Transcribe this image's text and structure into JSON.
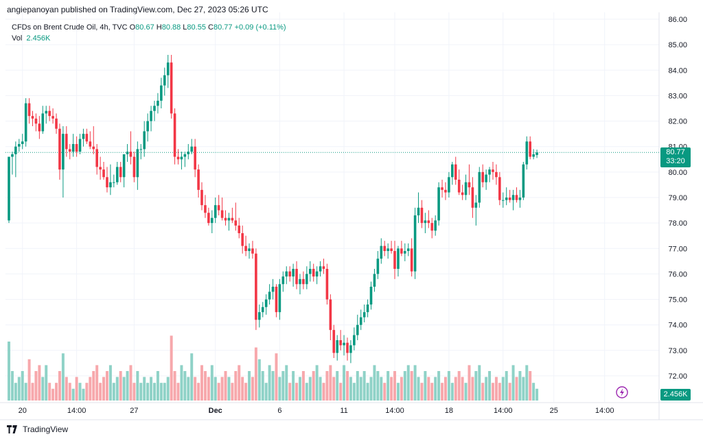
{
  "header": {
    "publisher_line": "angiepanoyan published on TradingView.com, Dec 27, 2023 05:26 UTC"
  },
  "legend": {
    "symbol": "CFDs on Brent Crude Oil, 4h, TVC",
    "o_label": "O",
    "o_value": "80.67",
    "h_label": "H",
    "h_value": "80.88",
    "l_label": "L",
    "l_value": "80.55",
    "c_label": "C",
    "c_value": "80.77",
    "change": "+0.09 (+0.11%)",
    "vol_label": "Vol",
    "vol_value": "2.456K"
  },
  "price_tag": {
    "price": "80.77",
    "countdown": "33:20"
  },
  "volume_tag": "2.456K",
  "footer": {
    "brand": "TradingView"
  },
  "colors": {
    "up": "#089981",
    "down": "#f23645",
    "vol_up": "#8fd2c7",
    "vol_down": "#f7a8ac",
    "grid": "#f0f3fa",
    "text": "#131722"
  },
  "chart_data": {
    "type": "candlestick",
    "y_axis": {
      "min": 72,
      "max": 86,
      "ticks": [
        "86.00",
        "85.00",
        "84.00",
        "83.00",
        "82.00",
        "81.00",
        "80.00",
        "79.00",
        "78.00",
        "77.00",
        "76.00",
        "75.00",
        "74.00",
        "73.00",
        "72.00"
      ]
    },
    "x_axis": {
      "labels": [
        {
          "text": "20",
          "bar": 4
        },
        {
          "text": "14:00",
          "bar": 20
        },
        {
          "text": "27",
          "bar": 37
        },
        {
          "text": "Dec",
          "bar": 61
        },
        {
          "text": "6",
          "bar": 80
        },
        {
          "text": "11",
          "bar": 99
        },
        {
          "text": "14:00",
          "bar": 114
        },
        {
          "text": "18",
          "bar": 130
        },
        {
          "text": "14:00",
          "bar": 146
        },
        {
          "text": "25",
          "bar": 161
        },
        {
          "text": "14:00",
          "bar": 176
        }
      ]
    },
    "last_price": 80.77,
    "candles": [
      [
        78.1,
        80.6,
        78.0,
        80.6,
        1.0
      ],
      [
        80.6,
        80.8,
        79.9,
        80.7,
        0.5
      ],
      [
        80.7,
        81.2,
        79.8,
        81.0,
        0.3
      ],
      [
        81.0,
        81.3,
        80.8,
        81.1,
        0.4
      ],
      [
        81.1,
        81.5,
        80.9,
        81.2,
        0.5
      ],
      [
        81.2,
        82.9,
        81.0,
        82.7,
        0.3
      ],
      [
        82.7,
        82.9,
        81.9,
        82.2,
        0.7
      ],
      [
        82.2,
        82.4,
        81.8,
        82.1,
        0.3
      ],
      [
        82.1,
        82.3,
        81.6,
        81.9,
        0.5
      ],
      [
        81.9,
        82.2,
        81.3,
        81.6,
        0.6
      ],
      [
        81.6,
        82.6,
        81.5,
        82.3,
        0.4
      ],
      [
        82.3,
        82.6,
        81.9,
        82.4,
        0.6
      ],
      [
        82.4,
        82.6,
        82.0,
        82.2,
        0.3
      ],
      [
        82.2,
        82.5,
        81.9,
        82.1,
        0.2
      ],
      [
        82.1,
        82.3,
        81.5,
        81.7,
        0.3
      ],
      [
        81.7,
        81.9,
        79.7,
        80.1,
        0.5
      ],
      [
        80.1,
        81.8,
        79.0,
        81.5,
        0.8
      ],
      [
        81.5,
        81.8,
        80.6,
        80.9,
        0.4
      ],
      [
        80.9,
        81.1,
        80.5,
        80.8,
        0.3
      ],
      [
        80.8,
        81.5,
        80.6,
        81.1,
        0.2
      ],
      [
        81.1,
        81.4,
        80.6,
        80.8,
        0.4
      ],
      [
        80.8,
        81.5,
        80.7,
        81.3,
        0.3
      ],
      [
        81.3,
        81.7,
        81.0,
        81.5,
        0.2
      ],
      [
        81.5,
        81.7,
        81.1,
        81.2,
        0.3
      ],
      [
        81.2,
        81.6,
        80.9,
        81.0,
        0.4
      ],
      [
        81.0,
        81.8,
        80.7,
        80.9,
        0.5
      ],
      [
        80.9,
        81.1,
        79.9,
        80.2,
        0.6
      ],
      [
        80.2,
        80.6,
        79.7,
        80.1,
        0.3
      ],
      [
        80.1,
        80.4,
        79.7,
        79.8,
        0.4
      ],
      [
        79.8,
        80.2,
        79.2,
        79.4,
        0.5
      ],
      [
        79.4,
        80.3,
        79.1,
        79.6,
        0.6
      ],
      [
        79.6,
        79.9,
        79.4,
        79.6,
        0.3
      ],
      [
        79.6,
        80.4,
        79.5,
        80.2,
        0.4
      ],
      [
        80.2,
        80.4,
        79.6,
        79.8,
        0.5
      ],
      [
        79.8,
        80.6,
        79.4,
        80.7,
        0.4
      ],
      [
        80.7,
        81.1,
        80.4,
        80.8,
        0.5
      ],
      [
        80.8,
        81.6,
        80.3,
        80.6,
        0.6
      ],
      [
        80.6,
        80.8,
        79.6,
        79.8,
        0.3
      ],
      [
        79.8,
        81.2,
        79.3,
        80.9,
        0.5
      ],
      [
        80.9,
        81.1,
        80.5,
        80.9,
        0.3
      ],
      [
        80.9,
        82.0,
        80.6,
        81.6,
        0.4
      ],
      [
        81.6,
        82.3,
        81.2,
        82.0,
        0.3
      ],
      [
        82.0,
        82.6,
        81.6,
        82.4,
        0.4
      ],
      [
        82.4,
        82.8,
        82.0,
        82.6,
        0.3
      ],
      [
        82.6,
        83.1,
        82.3,
        82.8,
        0.5
      ],
      [
        82.8,
        83.7,
        82.5,
        83.4,
        0.3
      ],
      [
        83.4,
        84.1,
        83.0,
        83.8,
        0.3
      ],
      [
        83.8,
        84.6,
        83.3,
        84.3,
        0.4
      ],
      [
        84.3,
        84.6,
        82.1,
        82.3,
        1.1
      ],
      [
        82.3,
        82.5,
        80.3,
        80.6,
        0.5
      ],
      [
        80.6,
        80.9,
        80.3,
        80.5,
        0.3
      ],
      [
        80.5,
        80.8,
        80.1,
        80.6,
        0.6
      ],
      [
        80.6,
        80.8,
        80.2,
        80.7,
        0.5
      ],
      [
        80.7,
        81.1,
        80.5,
        80.8,
        0.4
      ],
      [
        80.8,
        81.3,
        80.7,
        81.0,
        0.8
      ],
      [
        81.0,
        81.3,
        79.8,
        80.1,
        0.4
      ],
      [
        80.1,
        80.3,
        79.0,
        79.3,
        0.3
      ],
      [
        79.3,
        79.6,
        78.5,
        78.7,
        0.6
      ],
      [
        78.7,
        79.1,
        78.2,
        78.4,
        0.5
      ],
      [
        78.4,
        78.6,
        77.9,
        78.0,
        0.4
      ],
      [
        78.0,
        78.5,
        77.6,
        78.2,
        0.6
      ],
      [
        78.2,
        79.0,
        78.0,
        78.7,
        0.4
      ],
      [
        78.7,
        79.1,
        78.3,
        78.5,
        0.3
      ],
      [
        78.5,
        79.0,
        78.1,
        78.2,
        0.4
      ],
      [
        78.2,
        78.5,
        77.9,
        78.1,
        0.5
      ],
      [
        78.1,
        78.4,
        77.7,
        78.2,
        0.4
      ],
      [
        78.2,
        78.6,
        78.0,
        78.1,
        0.3
      ],
      [
        78.1,
        78.8,
        77.7,
        77.9,
        0.5
      ],
      [
        77.9,
        78.2,
        77.4,
        77.6,
        0.6
      ],
      [
        77.6,
        77.9,
        76.8,
        77.1,
        0.4
      ],
      [
        77.1,
        77.5,
        76.7,
        76.9,
        0.3
      ],
      [
        76.9,
        77.2,
        76.6,
        77.0,
        0.5
      ],
      [
        77.0,
        77.3,
        76.6,
        76.8,
        0.4
      ],
      [
        76.8,
        77.0,
        73.8,
        74.2,
        0.9
      ],
      [
        74.2,
        74.8,
        73.9,
        74.5,
        0.7
      ],
      [
        74.5,
        74.9,
        74.3,
        74.7,
        0.5
      ],
      [
        74.7,
        75.2,
        74.4,
        75.0,
        0.3
      ],
      [
        75.0,
        75.6,
        74.8,
        75.3,
        0.6
      ],
      [
        75.3,
        75.8,
        75.0,
        75.5,
        0.5
      ],
      [
        75.5,
        75.6,
        74.3,
        74.5,
        0.8
      ],
      [
        74.5,
        75.8,
        74.2,
        75.6,
        0.4
      ],
      [
        75.6,
        76.1,
        75.3,
        75.9,
        0.5
      ],
      [
        75.9,
        76.3,
        75.6,
        76.1,
        0.6
      ],
      [
        76.1,
        76.3,
        75.7,
        75.9,
        0.3
      ],
      [
        75.9,
        76.4,
        75.5,
        76.2,
        0.5
      ],
      [
        76.2,
        76.5,
        75.4,
        75.6,
        0.3
      ],
      [
        75.6,
        76.0,
        75.2,
        75.8,
        0.4
      ],
      [
        75.8,
        76.1,
        75.4,
        75.6,
        0.5
      ],
      [
        75.6,
        76.3,
        75.4,
        76.0,
        0.3
      ],
      [
        76.0,
        76.5,
        75.7,
        76.2,
        0.4
      ],
      [
        76.2,
        76.4,
        75.7,
        75.9,
        0.5
      ],
      [
        75.9,
        76.3,
        75.6,
        76.1,
        0.6
      ],
      [
        76.1,
        76.5,
        75.9,
        76.3,
        0.4
      ],
      [
        76.3,
        76.6,
        76.0,
        76.2,
        0.3
      ],
      [
        76.2,
        76.4,
        74.8,
        75.0,
        0.5
      ],
      [
        75.0,
        75.2,
        73.4,
        73.8,
        0.6
      ],
      [
        73.8,
        74.0,
        72.7,
        72.9,
        0.4
      ],
      [
        72.9,
        73.6,
        72.6,
        73.4,
        0.5
      ],
      [
        73.4,
        73.8,
        73.0,
        73.2,
        0.3
      ],
      [
        73.2,
        73.6,
        72.8,
        73.3,
        0.6
      ],
      [
        73.3,
        73.5,
        72.6,
        72.9,
        0.5
      ],
      [
        72.9,
        73.4,
        72.5,
        73.2,
        0.4
      ],
      [
        73.2,
        73.9,
        73.0,
        73.6,
        0.3
      ],
      [
        73.6,
        74.4,
        73.4,
        74.0,
        0.5
      ],
      [
        74.0,
        74.6,
        73.8,
        74.3,
        0.4
      ],
      [
        74.3,
        74.8,
        74.1,
        74.5,
        0.5
      ],
      [
        74.5,
        75.0,
        74.3,
        74.8,
        0.3
      ],
      [
        74.8,
        75.7,
        74.6,
        75.5,
        0.4
      ],
      [
        75.5,
        76.2,
        75.3,
        76.0,
        0.6
      ],
      [
        76.0,
        76.9,
        75.8,
        76.6,
        0.5
      ],
      [
        76.6,
        77.4,
        76.4,
        77.1,
        0.4
      ],
      [
        77.1,
        77.3,
        76.7,
        76.9,
        0.3
      ],
      [
        76.9,
        77.2,
        76.6,
        77.0,
        0.5
      ],
      [
        77.0,
        77.3,
        76.8,
        76.9,
        0.4
      ],
      [
        76.9,
        77.3,
        75.8,
        76.2,
        0.5
      ],
      [
        76.2,
        77.1,
        75.9,
        77.0,
        0.3
      ],
      [
        77.0,
        77.3,
        76.7,
        76.8,
        0.4
      ],
      [
        76.8,
        77.2,
        76.5,
        76.9,
        0.5
      ],
      [
        76.9,
        77.2,
        76.7,
        77.0,
        0.6
      ],
      [
        77.0,
        77.4,
        75.9,
        76.1,
        0.5
      ],
      [
        76.1,
        78.6,
        75.8,
        78.3,
        0.6
      ],
      [
        78.3,
        79.2,
        78.0,
        78.6,
        0.4
      ],
      [
        78.6,
        78.9,
        77.8,
        78.0,
        0.3
      ],
      [
        78.0,
        78.4,
        77.6,
        78.1,
        0.5
      ],
      [
        78.1,
        78.5,
        77.8,
        78.0,
        0.4
      ],
      [
        78.0,
        78.2,
        77.4,
        77.7,
        0.3
      ],
      [
        77.7,
        78.3,
        77.5,
        78.1,
        0.4
      ],
      [
        78.1,
        79.6,
        77.9,
        79.4,
        0.5
      ],
      [
        79.4,
        79.7,
        79.0,
        79.3,
        0.3
      ],
      [
        79.3,
        79.6,
        78.9,
        79.2,
        0.4
      ],
      [
        79.2,
        80.0,
        79.0,
        79.8,
        0.5
      ],
      [
        79.8,
        80.4,
        79.5,
        80.3,
        0.3
      ],
      [
        80.3,
        80.6,
        79.5,
        79.7,
        0.4
      ],
      [
        79.7,
        80.1,
        79.1,
        79.2,
        0.5
      ],
      [
        79.2,
        79.5,
        78.9,
        79.1,
        0.4
      ],
      [
        79.1,
        79.9,
        78.9,
        79.6,
        0.3
      ],
      [
        79.6,
        80.3,
        79.1,
        79.4,
        0.6
      ],
      [
        79.4,
        79.8,
        78.2,
        78.6,
        0.4
      ],
      [
        78.6,
        79.1,
        77.9,
        78.8,
        0.5
      ],
      [
        78.8,
        80.2,
        78.6,
        80.0,
        0.6
      ],
      [
        80.0,
        80.3,
        79.4,
        79.6,
        0.3
      ],
      [
        79.6,
        80.1,
        79.3,
        79.9,
        0.4
      ],
      [
        79.9,
        80.2,
        79.6,
        80.1,
        0.5
      ],
      [
        80.1,
        80.4,
        79.7,
        80.0,
        0.3
      ],
      [
        80.0,
        80.3,
        79.5,
        79.8,
        0.4
      ],
      [
        79.8,
        80.0,
        78.7,
        78.9,
        0.3
      ],
      [
        78.9,
        79.2,
        78.6,
        78.9,
        0.4
      ],
      [
        78.9,
        79.4,
        78.7,
        79.0,
        0.5
      ],
      [
        79.0,
        79.3,
        78.8,
        78.9,
        0.3
      ],
      [
        78.9,
        79.3,
        78.5,
        79.1,
        0.6
      ],
      [
        79.1,
        79.4,
        78.8,
        78.9,
        0.4
      ],
      [
        78.9,
        79.3,
        78.6,
        79.0,
        0.5
      ],
      [
        79.0,
        80.4,
        78.9,
        80.3,
        0.4
      ],
      [
        80.3,
        81.4,
        80.1,
        81.2,
        0.6
      ],
      [
        81.2,
        81.4,
        80.5,
        80.6,
        0.5
      ],
      [
        80.6,
        80.9,
        80.5,
        80.7,
        0.3
      ],
      [
        80.67,
        80.88,
        80.55,
        80.77,
        0.2
      ]
    ]
  }
}
